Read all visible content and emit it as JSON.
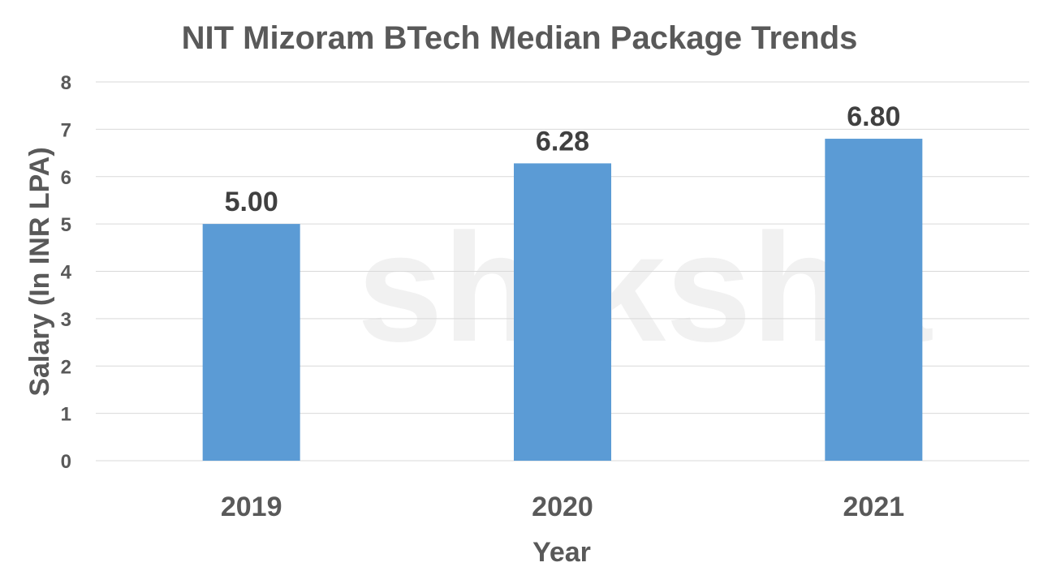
{
  "chart_data": {
    "type": "bar",
    "title": "NIT Mizoram BTech Median Package Trends",
    "xlabel": "Year",
    "ylabel": "Salary (In INR LPA)",
    "categories": [
      "2019",
      "2020",
      "2021"
    ],
    "values": [
      5.0,
      6.28,
      6.8
    ],
    "data_labels": [
      "5.00",
      "6.28",
      "6.80"
    ],
    "ylim": [
      0,
      8
    ],
    "yticks": [
      0,
      1,
      2,
      3,
      4,
      5,
      6,
      7,
      8
    ],
    "grid": true,
    "legend": "none",
    "bar_color": "#5B9BD5"
  },
  "watermark": "shiksha"
}
